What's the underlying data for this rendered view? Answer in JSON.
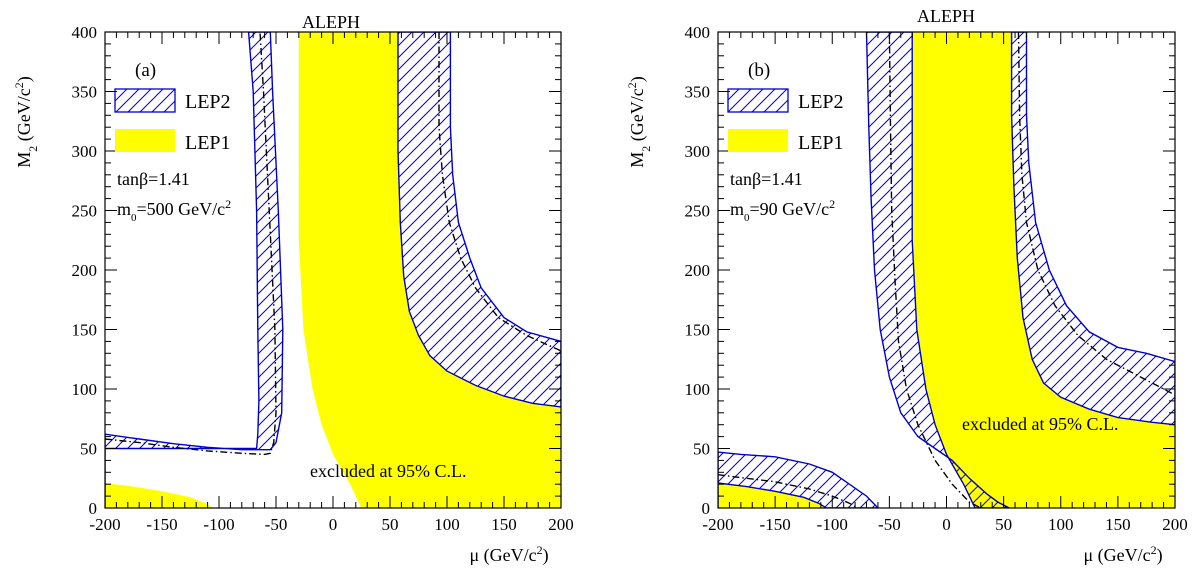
{
  "figure": {
    "colors": {
      "lep1": "#ffff00",
      "lep2": "#0000cc",
      "axis": "#000000",
      "background": "#ffffff"
    }
  },
  "chart_data": [
    {
      "id": "a",
      "type": "area",
      "panel_label": "(a)",
      "experiment": "ALEPH",
      "title": "",
      "xlabel": "μ (GeV/c²)",
      "ylabel": "M₂ (GeV/c²)",
      "xlim": [
        -200,
        200
      ],
      "ylim": [
        0,
        400
      ],
      "x_ticks": [
        -200,
        -150,
        -100,
        -50,
        0,
        50,
        100,
        150,
        200
      ],
      "y_ticks": [
        0,
        50,
        100,
        150,
        200,
        250,
        300,
        350,
        400
      ],
      "grid": false,
      "legend": {
        "placement": "top-left",
        "entries": [
          "LEP2",
          "LEP1"
        ]
      },
      "parameters": [
        "tanβ=1.41",
        "m₀=500 GeV/c²"
      ],
      "annotation": "excluded at 95% C.L.",
      "series": [
        {
          "name": "LEP1",
          "style": "filled",
          "polygons": [
            [
              [
                -30,
                400
              ],
              [
                -30,
                225
              ],
              [
                -26,
                150
              ],
              [
                -18,
                100
              ],
              [
                -10,
                70
              ],
              [
                0,
                45
              ],
              [
                15,
                20
              ],
              [
                25,
                0
              ],
              [
                200,
                0
              ],
              [
                200,
                85
              ],
              [
                175,
                88
              ],
              [
                150,
                94
              ],
              [
                125,
                103
              ],
              [
                100,
                115
              ],
              [
                85,
                128
              ],
              [
                75,
                145
              ],
              [
                67,
                165
              ],
              [
                62,
                195
              ],
              [
                59,
                240
              ],
              [
                57,
                300
              ],
              [
                57,
                400
              ]
            ],
            [
              [
                -200,
                0
              ],
              [
                -200,
                21
              ],
              [
                -175,
                18
              ],
              [
                -150,
                14
              ],
              [
                -125,
                9
              ],
              [
                -112,
                4
              ],
              [
                -105,
                0
              ]
            ]
          ]
        },
        {
          "name": "LEP2",
          "style": "hatched",
          "polygons": [
            [
              [
                -200,
                0
              ],
              [
                -200,
                62
              ],
              [
                -170,
                58
              ],
              [
                -140,
                54
              ],
              [
                -110,
                51
              ],
              [
                -80,
                49
              ],
              [
                -55,
                49
              ],
              [
                -50,
                55
              ],
              [
                -45,
                80
              ],
              [
                -44,
                150
              ],
              [
                -48,
                250
              ],
              [
                -53,
                350
              ],
              [
                -55,
                400
              ],
              [
                -74,
                400
              ],
              [
                -70,
                350
              ],
              [
                -67,
                250
              ],
              [
                -66,
                150
              ],
              [
                -65,
                90
              ],
              [
                -66,
                62
              ],
              [
                -67,
                50
              ],
              [
                -200,
                50
              ],
              [
                -200,
                0
              ]
            ],
            [
              [
                103,
                400
              ],
              [
                103,
                320
              ],
              [
                105,
                280
              ],
              [
                110,
                240
              ],
              [
                120,
                210
              ],
              [
                130,
                185
              ],
              [
                150,
                160
              ],
              [
                170,
                148
              ],
              [
                200,
                140
              ],
              [
                200,
                85
              ],
              [
                175,
                88
              ],
              [
                150,
                94
              ],
              [
                125,
                103
              ],
              [
                100,
                115
              ],
              [
                85,
                128
              ],
              [
                75,
                145
              ],
              [
                67,
                165
              ],
              [
                62,
                195
              ],
              [
                59,
                240
              ],
              [
                57,
                300
              ],
              [
                57,
                400
              ]
            ]
          ]
        },
        {
          "name": "",
          "style": "dash-dot",
          "polylines": [
            [
              [
                -200,
                58
              ],
              [
                -170,
                55
              ],
              [
                -140,
                51
              ],
              [
                -110,
                48
              ],
              [
                -80,
                46
              ],
              [
                -60,
                45
              ],
              [
                -55,
                46
              ],
              [
                -52,
                55
              ],
              [
                -50,
                80
              ],
              [
                -51,
                150
              ],
              [
                -56,
                250
              ],
              [
                -61,
                350
              ],
              [
                -64,
                400
              ]
            ],
            [
              [
                93,
                400
              ],
              [
                93,
                320
              ],
              [
                96,
                280
              ],
              [
                102,
                240
              ],
              [
                112,
                210
              ],
              [
                125,
                185
              ],
              [
                145,
                160
              ],
              [
                170,
                145
              ],
              [
                200,
                132
              ]
            ]
          ]
        }
      ]
    },
    {
      "id": "b",
      "type": "area",
      "panel_label": "(b)",
      "experiment": "ALEPH",
      "title": "",
      "xlabel": "μ (GeV/c²)",
      "ylabel": "M₂ (GeV/c²)",
      "xlim": [
        -200,
        200
      ],
      "ylim": [
        0,
        400
      ],
      "x_ticks": [
        -200,
        -150,
        -100,
        -50,
        0,
        50,
        100,
        150,
        200
      ],
      "y_ticks": [
        0,
        50,
        100,
        150,
        200,
        250,
        300,
        350,
        400
      ],
      "grid": false,
      "legend": {
        "placement": "top-left",
        "entries": [
          "LEP2",
          "LEP1"
        ]
      },
      "parameters": [
        "tanβ=1.41",
        "m₀=90 GeV/c²"
      ],
      "annotation": "excluded at 95% C.L.",
      "series": [
        {
          "name": "LEP1",
          "style": "filled",
          "polygons": [
            [
              [
                -30,
                400
              ],
              [
                -30,
                225
              ],
              [
                -26,
                150
              ],
              [
                -18,
                100
              ],
              [
                -10,
                70
              ],
              [
                0,
                45
              ],
              [
                15,
                20
              ],
              [
                25,
                0
              ],
              [
                200,
                0
              ],
              [
                200,
                70
              ],
              [
                180,
                72
              ],
              [
                150,
                76
              ],
              [
                125,
                83
              ],
              [
                100,
                93
              ],
              [
                85,
                105
              ],
              [
                75,
                125
              ],
              [
                67,
                160
              ],
              [
                62,
                210
              ],
              [
                59,
                270
              ],
              [
                57,
                330
              ],
              [
                57,
                400
              ]
            ],
            [
              [
                -200,
                0
              ],
              [
                -200,
                21
              ],
              [
                -175,
                18
              ],
              [
                -150,
                14
              ],
              [
                -125,
                9
              ],
              [
                -112,
                4
              ],
              [
                -105,
                0
              ]
            ]
          ]
        },
        {
          "name": "LEP2",
          "style": "hatched",
          "polygons": [
            [
              [
                -70,
                400
              ],
              [
                -68,
                320
              ],
              [
                -66,
                260
              ],
              [
                -63,
                200
              ],
              [
                -58,
                150
              ],
              [
                -50,
                110
              ],
              [
                -40,
                80
              ],
              [
                -25,
                60
              ],
              [
                -10,
                50
              ],
              [
                5,
                40
              ],
              [
                20,
                25
              ],
              [
                35,
                12
              ],
              [
                45,
                5
              ],
              [
                55,
                0
              ],
              [
                25,
                0
              ],
              [
                15,
                20
              ],
              [
                0,
                45
              ],
              [
                -10,
                70
              ],
              [
                -18,
                100
              ],
              [
                -26,
                150
              ],
              [
                -30,
                225
              ],
              [
                -30,
                400
              ]
            ],
            [
              [
                70,
                400
              ],
              [
                70,
                330
              ],
              [
                72,
                290
              ],
              [
                78,
                240
              ],
              [
                90,
                200
              ],
              [
                105,
                170
              ],
              [
                125,
                148
              ],
              [
                150,
                135
              ],
              [
                175,
                130
              ],
              [
                200,
                123
              ],
              [
                200,
                70
              ],
              [
                180,
                72
              ],
              [
                150,
                76
              ],
              [
                125,
                83
              ],
              [
                100,
                93
              ],
              [
                85,
                105
              ],
              [
                75,
                125
              ],
              [
                67,
                160
              ],
              [
                62,
                210
              ],
              [
                59,
                270
              ],
              [
                57,
                330
              ],
              [
                57,
                400
              ]
            ],
            [
              [
                -200,
                0
              ],
              [
                -200,
                47
              ],
              [
                -180,
                45
              ],
              [
                -150,
                43
              ],
              [
                -120,
                37
              ],
              [
                -100,
                30
              ],
              [
                -85,
                20
              ],
              [
                -70,
                10
              ],
              [
                -60,
                0
              ],
              [
                -105,
                0
              ],
              [
                -112,
                4
              ],
              [
                -125,
                9
              ],
              [
                -150,
                14
              ],
              [
                -175,
                18
              ],
              [
                -200,
                21
              ]
            ]
          ]
        },
        {
          "name": "",
          "style": "dash-dot",
          "polylines": [
            [
              [
                -200,
                28
              ],
              [
                -175,
                25
              ],
              [
                -150,
                22
              ],
              [
                -120,
                16
              ],
              [
                -100,
                10
              ],
              [
                -85,
                4
              ],
              [
                -78,
                0
              ]
            ],
            [
              [
                -50,
                400
              ],
              [
                -49,
                320
              ],
              [
                -48,
                250
              ],
              [
                -45,
                190
              ],
              [
                -42,
                140
              ],
              [
                -35,
                100
              ],
              [
                -25,
                70
              ],
              [
                -10,
                40
              ],
              [
                5,
                20
              ],
              [
                20,
                5
              ],
              [
                30,
                0
              ]
            ],
            [
              [
                63,
                400
              ],
              [
                64,
                330
              ],
              [
                66,
                280
              ],
              [
                70,
                240
              ],
              [
                80,
                200
              ],
              [
                95,
                170
              ],
              [
                115,
                145
              ],
              [
                140,
                125
              ],
              [
                170,
                110
              ],
              [
                200,
                95
              ]
            ]
          ]
        }
      ]
    }
  ]
}
